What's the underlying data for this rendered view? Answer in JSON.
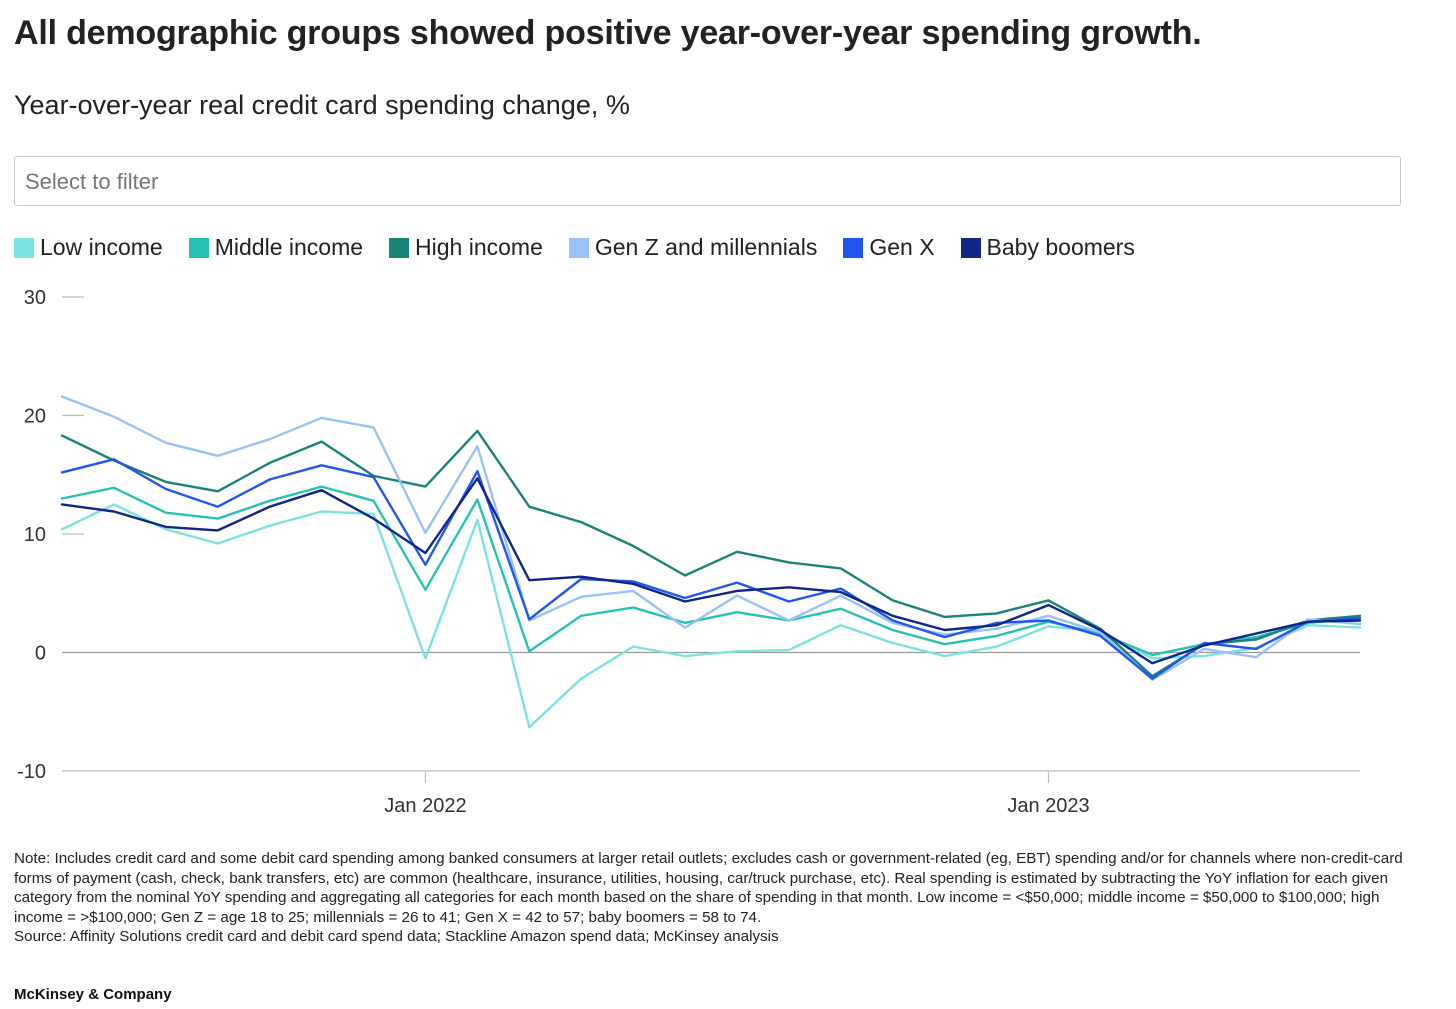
{
  "title": "All demographic groups showed positive year-over-year spending growth.",
  "subtitle": "Year-over-year real credit card spending change, %",
  "filter": {
    "placeholder": "Select to filter"
  },
  "note": "Note: Includes credit card and some debit card spending among banked consumers at larger retail outlets; excludes cash or government-related (eg, EBT) spending and/or for channels where non-credit-card forms of payment (cash, check, bank transfers, etc) are common (healthcare, insurance, utilities, housing, car/truck purchase, etc). Real spending is estimated by subtracting the YoY inflation for each given category from the nominal YoY spending and aggregating all categories for each month based on the share of spending in that month. Low income = <$50,000; middle income = $50,000 to $100,000; high income = >$100,000; Gen Z = age 18 to 25; millennials = 26 to 41; Gen X = 42 to 57; baby boomers = 58 to 74.",
  "source": "Source: Affinity Solutions credit card and debit card spend data; Stackline Amazon spend data; McKinsey analysis",
  "brand": "McKinsey & Company",
  "chart_data": {
    "type": "line",
    "x": [
      0,
      1,
      2,
      3,
      4,
      5,
      6,
      7,
      8,
      9,
      10,
      11,
      12,
      13,
      14,
      15,
      16,
      17,
      18,
      19,
      20,
      21,
      22,
      23,
      24,
      25
    ],
    "x_tick_labels": [
      {
        "x": 7,
        "label": "Jan 2022"
      },
      {
        "x": 19,
        "label": "Jan 2023"
      }
    ],
    "xlim": [
      0,
      25
    ],
    "ylim": [
      -10,
      30
    ],
    "yticks": [
      -10,
      0,
      10,
      20,
      30
    ],
    "xlabel": "",
    "ylabel": "",
    "series": [
      {
        "name": "Low income",
        "color": "#7be3e0",
        "values": [
          10.4,
          12.5,
          10.4,
          9.2,
          10.7,
          11.9,
          11.7,
          -0.5,
          11.2,
          -6.3,
          -2.2,
          0.5,
          -0.3,
          0.1,
          0.2,
          2.3,
          0.8,
          -0.3,
          0.5,
          2.2,
          1.8,
          -0.5,
          -0.3,
          0.4,
          2.3,
          2.1
        ]
      },
      {
        "name": "Middle income",
        "color": "#26c2b3",
        "values": [
          13.0,
          13.9,
          11.8,
          11.3,
          12.8,
          14.0,
          12.8,
          5.3,
          12.9,
          0.1,
          3.1,
          3.8,
          2.5,
          3.4,
          2.7,
          3.7,
          1.9,
          0.7,
          1.4,
          2.6,
          1.6,
          -0.2,
          0.7,
          1.3,
          2.5,
          2.9
        ]
      },
      {
        "name": "High income",
        "color": "#1a8478",
        "values": [
          18.3,
          16.2,
          14.4,
          13.6,
          16.0,
          17.8,
          14.9,
          14.0,
          18.7,
          12.3,
          11.0,
          9.0,
          6.5,
          8.5,
          7.6,
          7.1,
          4.4,
          3.0,
          3.3,
          4.4,
          2.0,
          -2.0,
          0.7,
          1.1,
          2.7,
          3.1
        ]
      },
      {
        "name": "Gen Z and millennials",
        "color": "#99c2f7",
        "values": [
          21.6,
          19.9,
          17.7,
          16.6,
          18.0,
          19.8,
          19.0,
          10.1,
          17.4,
          2.7,
          4.7,
          5.2,
          2.1,
          4.8,
          2.7,
          4.8,
          2.5,
          1.5,
          2.0,
          3.1,
          1.7,
          -2.3,
          0.3,
          -0.4,
          2.8,
          2.4
        ]
      },
      {
        "name": "Gen X",
        "color": "#2356f0",
        "values": [
          15.2,
          16.3,
          13.8,
          12.3,
          14.6,
          15.8,
          14.8,
          7.4,
          15.3,
          2.8,
          6.2,
          6.0,
          4.6,
          5.9,
          4.3,
          5.4,
          2.7,
          1.3,
          2.5,
          2.7,
          1.4,
          -2.2,
          0.8,
          0.3,
          2.6,
          2.9
        ]
      },
      {
        "name": "Baby boomers",
        "color": "#0f2888",
        "values": [
          12.5,
          11.9,
          10.6,
          10.3,
          12.3,
          13.7,
          11.3,
          8.4,
          14.7,
          6.1,
          6.4,
          5.8,
          4.3,
          5.2,
          5.5,
          5.1,
          3.1,
          1.9,
          2.3,
          4.0,
          1.9,
          -0.9,
          0.6,
          1.6,
          2.6,
          2.7
        ]
      }
    ]
  }
}
